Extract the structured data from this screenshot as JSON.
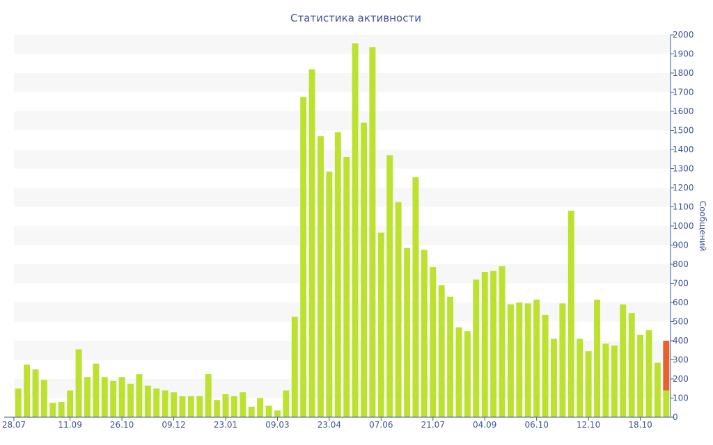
{
  "chart_data": {
    "type": "bar",
    "title": "Статистика активности",
    "ylabel": "Сообщений",
    "ylim": [
      0,
      2000
    ],
    "y_ticks": [
      0,
      100,
      200,
      300,
      400,
      500,
      600,
      700,
      800,
      900,
      1000,
      1100,
      1200,
      1300,
      1400,
      1500,
      1600,
      1700,
      1800,
      1900,
      2000
    ],
    "y_axis_position": "right",
    "grid": "alternating horizontal bands",
    "x_tick_labels": [
      "28.07",
      "11.09",
      "26.10",
      "09.12",
      "23.01",
      "09.03",
      "23.04",
      "07.06",
      "21.07",
      "04.09",
      "06.10",
      "12.10",
      "18.10"
    ],
    "x_tick_positions": [
      0,
      6.5,
      12.5,
      18.5,
      24.5,
      30.5,
      36.5,
      42.5,
      48.5,
      54.5,
      60.5,
      66.5,
      72.5
    ],
    "series": [
      {
        "color": "#bce22f",
        "values": [
          150,
          275,
          250,
          195,
          75,
          80,
          140,
          355,
          210,
          280,
          210,
          190,
          210,
          175,
          225,
          165,
          150,
          140,
          130,
          110,
          110,
          110,
          225,
          90,
          120,
          110,
          130,
          55,
          100,
          60,
          35,
          140,
          525,
          1675,
          1820,
          1470,
          1285,
          1490,
          1360,
          1955,
          1540,
          1935,
          965,
          1370,
          1125,
          885,
          1255,
          875,
          785,
          690,
          630,
          470,
          450,
          720,
          760,
          765,
          790,
          590,
          600,
          595,
          615,
          535,
          410,
          595,
          1080,
          410,
          345,
          615,
          385,
          375,
          590,
          545,
          430,
          455,
          285,
          140
        ]
      },
      {
        "color": "#e8602c",
        "values": [
          0,
          0,
          0,
          0,
          0,
          0,
          0,
          0,
          0,
          0,
          0,
          0,
          0,
          0,
          0,
          0,
          0,
          0,
          0,
          0,
          0,
          0,
          0,
          0,
          0,
          0,
          0,
          0,
          0,
          0,
          0,
          0,
          0,
          0,
          0,
          0,
          0,
          0,
          0,
          0,
          0,
          0,
          0,
          0,
          0,
          0,
          0,
          0,
          0,
          0,
          0,
          0,
          0,
          0,
          0,
          0,
          0,
          0,
          0,
          0,
          0,
          0,
          0,
          0,
          0,
          0,
          0,
          0,
          0,
          0,
          0,
          0,
          0,
          0,
          0,
          260
        ]
      }
    ]
  }
}
